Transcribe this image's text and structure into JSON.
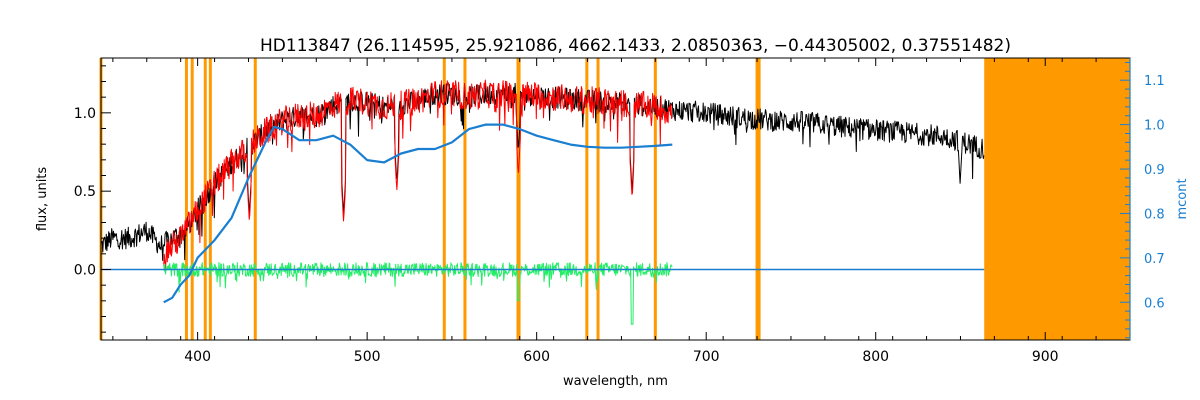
{
  "chart_data": {
    "type": "line",
    "title": "HD113847   (26.114595, 25.921086, 4662.1433, 2.0850363, −0.44305002, 0.37551482)",
    "xlabel": "wavelength, nm",
    "ylabel": "flux, units",
    "y2label": "mcont",
    "xlim": [
      343,
      950
    ],
    "ylim": [
      -0.45,
      1.35
    ],
    "y2lim": [
      0.515,
      1.15
    ],
    "xticks": [
      400,
      500,
      600,
      700,
      800,
      900
    ],
    "xtick_labels": [
      "400",
      "500",
      "600",
      "700",
      "800",
      "900"
    ],
    "yticks": [
      0.0,
      0.5,
      1.0
    ],
    "ytick_labels": [
      "0.0",
      "0.5",
      "1.0"
    ],
    "y2ticks": [
      0.6,
      0.7,
      0.8,
      0.9,
      1.0,
      1.1
    ],
    "y2tick_labels": [
      "0.6",
      "0.7",
      "0.8",
      "0.9",
      "1.0",
      "1.1"
    ],
    "grid": false,
    "colors": {
      "observed": "#000000",
      "model": "#ff0000",
      "residual": "#22ee66",
      "continuum": "#1a7fd1",
      "masks": "#ff9900"
    },
    "mask_lines": [
      343,
      393.4,
      396.8,
      404.5,
      407.5,
      434.0,
      545.5,
      557.7,
      589.0,
      589.6,
      629.6,
      636.2,
      670.0,
      730.0,
      731.2
    ],
    "mask_band": [
      864,
      950
    ],
    "series": [
      {
        "type": "noisy",
        "role": "observed",
        "x": [
          343,
          350,
          360,
          370,
          378,
          385,
          393,
          400,
          410,
          420,
          430,
          440,
          450,
          460,
          470,
          480,
          490,
          500,
          510,
          520,
          530,
          540,
          550,
          560,
          570,
          580,
          590,
          600,
          610,
          620,
          630,
          640,
          650,
          660,
          670,
          680,
          700,
          720,
          740,
          760,
          780,
          800,
          820,
          840,
          850,
          864
        ],
        "y": [
          0.15,
          0.2,
          0.2,
          0.25,
          0.15,
          0.2,
          0.25,
          0.38,
          0.55,
          0.68,
          0.78,
          0.88,
          0.95,
          0.98,
          0.98,
          1.05,
          1.08,
          1.07,
          1.04,
          1.05,
          1.08,
          1.12,
          1.12,
          1.1,
          1.12,
          1.12,
          1.12,
          1.11,
          1.1,
          1.09,
          1.08,
          1.07,
          1.06,
          1.05,
          1.04,
          1.02,
          1.0,
          0.97,
          0.95,
          0.94,
          0.91,
          0.89,
          0.87,
          0.85,
          0.82,
          0.77
        ],
        "noise": 0.07,
        "absorption": [
          [
            393.4,
            0.35
          ],
          [
            396.8,
            0.3
          ],
          [
            430.5,
            0.35
          ],
          [
            486.1,
            0.35
          ],
          [
            517.5,
            0.55
          ],
          [
            589.2,
            0.75
          ],
          [
            656.3,
            0.5
          ],
          [
            849.8,
            0.55
          ],
          [
            854.2,
            0.8
          ],
          [
            866.2,
            0.0
          ]
        ]
      },
      {
        "type": "noisy",
        "role": "model",
        "x": [
          380,
          390,
          400,
          410,
          420,
          430,
          440,
          450,
          460,
          470,
          480,
          490,
          500,
          510,
          520,
          530,
          540,
          550,
          560,
          570,
          580,
          590,
          600,
          610,
          620,
          630,
          640,
          650,
          660,
          670,
          680
        ],
        "y": [
          0.1,
          0.2,
          0.38,
          0.55,
          0.68,
          0.78,
          0.88,
          0.95,
          0.98,
          0.98,
          1.05,
          1.08,
          1.07,
          1.04,
          1.05,
          1.08,
          1.12,
          1.12,
          1.1,
          1.12,
          1.12,
          1.12,
          1.11,
          1.1,
          1.09,
          1.08,
          1.07,
          1.06,
          1.05,
          1.04,
          1.0
        ],
        "noise": 0.09,
        "absorption": [
          [
            393.4,
            0.35
          ],
          [
            396.8,
            0.3
          ],
          [
            430.5,
            0.3
          ],
          [
            486.1,
            0.3
          ],
          [
            517.5,
            0.5
          ],
          [
            589.2,
            0.6
          ],
          [
            656.3,
            0.45
          ]
        ]
      },
      {
        "type": "noisy",
        "role": "residual",
        "x": [
          380,
          680
        ],
        "y": [
          0.0,
          0.0
        ],
        "noise": 0.045,
        "absorption": [
          [
            589.2,
            0.2
          ],
          [
            656.3,
            0.35
          ]
        ]
      },
      {
        "type": "smooth",
        "role": "continuum",
        "axis": "y2",
        "x": [
          380,
          385,
          390,
          395,
          400,
          410,
          420,
          430,
          440,
          445,
          450,
          460,
          470,
          480,
          490,
          500,
          510,
          520,
          530,
          540,
          550,
          560,
          570,
          580,
          590,
          600,
          610,
          620,
          630,
          640,
          650,
          660,
          670,
          680
        ],
        "y": [
          0.6,
          0.61,
          0.64,
          0.66,
          0.7,
          0.74,
          0.79,
          0.88,
          0.96,
          0.995,
          0.99,
          0.965,
          0.965,
          0.975,
          0.955,
          0.92,
          0.915,
          0.935,
          0.945,
          0.945,
          0.96,
          0.99,
          1.0,
          1.0,
          0.99,
          0.975,
          0.965,
          0.955,
          0.95,
          0.948,
          0.948,
          0.95,
          0.952,
          0.955
        ]
      },
      {
        "type": "flat",
        "role": "continuum-ext",
        "x": [
          343,
          380,
          680,
          864
        ],
        "y": [
          0.0,
          0.0,
          0.0,
          0.0
        ]
      }
    ]
  }
}
